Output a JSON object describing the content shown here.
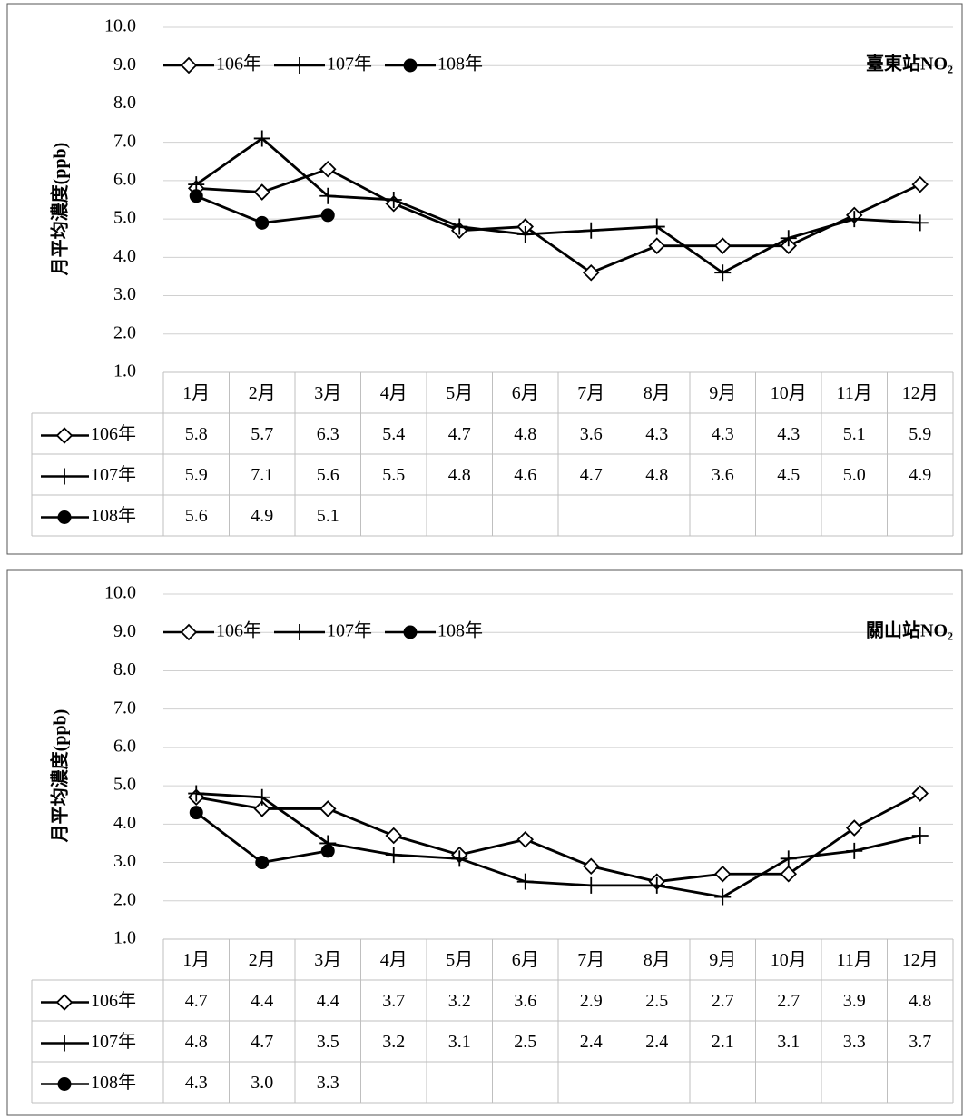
{
  "chart_data": [
    {
      "type": "line",
      "title": "臺東站NO₂",
      "ylabel": "月平均濃度(ppb)",
      "categories": [
        "1月",
        "2月",
        "3月",
        "4月",
        "5月",
        "6月",
        "7月",
        "8月",
        "9月",
        "10月",
        "11月",
        "12月"
      ],
      "ylim": [
        1,
        10
      ],
      "yticks": [
        {
          "value": 1,
          "label": "1.0"
        },
        {
          "value": 2,
          "label": "2.0"
        },
        {
          "value": 3,
          "label": "3.0"
        },
        {
          "value": 4,
          "label": "4.0"
        },
        {
          "value": 5,
          "label": "5.0"
        },
        {
          "value": 6,
          "label": "6.0"
        },
        {
          "value": 7,
          "label": "7.0"
        },
        {
          "value": 8,
          "label": "8.0"
        },
        {
          "value": 9,
          "label": "9.0"
        },
        {
          "value": 10,
          "label": "10.0"
        }
      ],
      "grid": true,
      "series": [
        {
          "name": "106年",
          "color": "#000000",
          "marker": "diamond",
          "values": [
            5.8,
            5.7,
            6.3,
            5.4,
            4.7,
            4.8,
            3.6,
            4.3,
            4.3,
            4.3,
            5.1,
            5.9
          ],
          "value_labels": [
            "5.8",
            "5.7",
            "6.3",
            "5.4",
            "4.7",
            "4.8",
            "3.6",
            "4.3",
            "4.3",
            "4.3",
            "5.1",
            "5.9"
          ]
        },
        {
          "name": "107年",
          "color": "#000000",
          "marker": "plus",
          "values": [
            5.9,
            7.1,
            5.6,
            5.5,
            4.8,
            4.6,
            4.7,
            4.8,
            3.6,
            4.5,
            5.0,
            4.9
          ],
          "value_labels": [
            "5.9",
            "7.1",
            "5.6",
            "5.5",
            "4.8",
            "4.6",
            "4.7",
            "4.8",
            "3.6",
            "4.5",
            "5.0",
            "4.9"
          ]
        },
        {
          "name": "108年",
          "color": "#000000",
          "marker": "circle",
          "values": [
            5.6,
            4.9,
            5.1,
            null,
            null,
            null,
            null,
            null,
            null,
            null,
            null,
            null
          ],
          "value_labels": [
            "5.6",
            "4.9",
            "5.1",
            null,
            null,
            null,
            null,
            null,
            null,
            null,
            null,
            null
          ]
        }
      ]
    },
    {
      "type": "line",
      "title": "關山站NO₂",
      "ylabel": "月平均濃度(ppb)",
      "categories": [
        "1月",
        "2月",
        "3月",
        "4月",
        "5月",
        "6月",
        "7月",
        "8月",
        "9月",
        "10月",
        "11月",
        "12月"
      ],
      "ylim": [
        1,
        10
      ],
      "yticks": [
        {
          "value": 1,
          "label": "1.0"
        },
        {
          "value": 2,
          "label": "2.0"
        },
        {
          "value": 3,
          "label": "3.0"
        },
        {
          "value": 4,
          "label": "4.0"
        },
        {
          "value": 5,
          "label": "5.0"
        },
        {
          "value": 6,
          "label": "6.0"
        },
        {
          "value": 7,
          "label": "7.0"
        },
        {
          "value": 8,
          "label": "8.0"
        },
        {
          "value": 9,
          "label": "9.0"
        },
        {
          "value": 10,
          "label": "10.0"
        }
      ],
      "grid": true,
      "series": [
        {
          "name": "106年",
          "color": "#000000",
          "marker": "diamond",
          "values": [
            4.7,
            4.4,
            4.4,
            3.7,
            3.2,
            3.6,
            2.9,
            2.5,
            2.7,
            2.7,
            3.9,
            4.8
          ],
          "value_labels": [
            "4.7",
            "4.4",
            "4.4",
            "3.7",
            "3.2",
            "3.6",
            "2.9",
            "2.5",
            "2.7",
            "2.7",
            "3.9",
            "4.8"
          ]
        },
        {
          "name": "107年",
          "color": "#000000",
          "marker": "plus",
          "values": [
            4.8,
            4.7,
            3.5,
            3.2,
            3.1,
            2.5,
            2.4,
            2.4,
            2.1,
            3.1,
            3.3,
            3.7
          ],
          "value_labels": [
            "4.8",
            "4.7",
            "3.5",
            "3.2",
            "3.1",
            "2.5",
            "2.4",
            "2.4",
            "2.1",
            "3.1",
            "3.3",
            "3.7"
          ]
        },
        {
          "name": "108年",
          "color": "#000000",
          "marker": "circle",
          "values": [
            4.3,
            3.0,
            3.3,
            null,
            null,
            null,
            null,
            null,
            null,
            null,
            null,
            null
          ],
          "value_labels": [
            "4.3",
            "3.0",
            "3.3",
            null,
            null,
            null,
            null,
            null,
            null,
            null,
            null,
            null
          ]
        }
      ]
    }
  ]
}
